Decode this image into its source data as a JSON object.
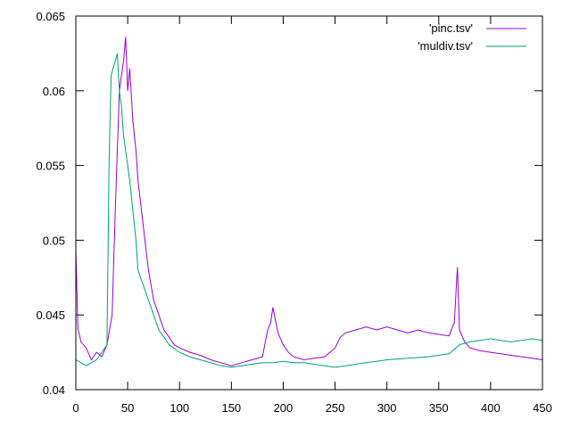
{
  "chart_data": {
    "type": "line",
    "title": "",
    "xlabel": "",
    "ylabel": "",
    "xlim": [
      0,
      450
    ],
    "ylim": [
      0.04,
      0.065
    ],
    "x_ticks": [
      0,
      50,
      100,
      150,
      200,
      250,
      300,
      350,
      400,
      450
    ],
    "y_ticks": [
      0.04,
      0.045,
      0.05,
      0.055,
      0.06,
      0.065
    ],
    "x_tick_labels": [
      "0",
      "50",
      "100",
      "150",
      "200",
      "250",
      "300",
      "350",
      "400",
      "450"
    ],
    "y_tick_labels": [
      "0.04",
      "0.045",
      "0.05",
      "0.055",
      "0.06",
      "0.065"
    ],
    "grid": false,
    "legend_position": "top-right",
    "series": [
      {
        "name": "'pinc.tsv'",
        "color": "#9400d3",
        "x": [
          0,
          2,
          5,
          10,
          15,
          20,
          25,
          30,
          35,
          38,
          40,
          42,
          44,
          46,
          48,
          50,
          52,
          55,
          58,
          60,
          65,
          70,
          75,
          80,
          85,
          90,
          95,
          100,
          110,
          120,
          130,
          140,
          150,
          160,
          170,
          180,
          185,
          188,
          190,
          195,
          200,
          205,
          210,
          220,
          230,
          240,
          250,
          255,
          260,
          270,
          280,
          290,
          300,
          310,
          320,
          330,
          340,
          350,
          360,
          365,
          368,
          370,
          375,
          380,
          390,
          400,
          410,
          420,
          430,
          440,
          450
        ],
        "y": [
          0.0494,
          0.0441,
          0.0432,
          0.0428,
          0.042,
          0.0425,
          0.0422,
          0.043,
          0.045,
          0.052,
          0.056,
          0.06,
          0.061,
          0.062,
          0.0636,
          0.06,
          0.0615,
          0.058,
          0.056,
          0.054,
          0.051,
          0.048,
          0.046,
          0.045,
          0.044,
          0.0435,
          0.043,
          0.0428,
          0.0425,
          0.0423,
          0.042,
          0.0418,
          0.0416,
          0.0418,
          0.042,
          0.0422,
          0.044,
          0.0445,
          0.0455,
          0.0438,
          0.043,
          0.0425,
          0.0422,
          0.042,
          0.0421,
          0.0422,
          0.0428,
          0.0435,
          0.0438,
          0.044,
          0.0442,
          0.044,
          0.0442,
          0.044,
          0.0438,
          0.044,
          0.0438,
          0.0437,
          0.0436,
          0.0445,
          0.0482,
          0.044,
          0.0432,
          0.0428,
          0.0426,
          0.0425,
          0.0424,
          0.0423,
          0.0422,
          0.0421,
          0.042
        ]
      },
      {
        "name": "'muldiv.tsv'",
        "color": "#009e73",
        "x": [
          0,
          5,
          10,
          15,
          20,
          25,
          30,
          32,
          34,
          36,
          38,
          40,
          42,
          44,
          46,
          48,
          50,
          52,
          55,
          58,
          60,
          65,
          70,
          75,
          80,
          85,
          90,
          100,
          110,
          120,
          130,
          140,
          150,
          160,
          170,
          180,
          190,
          200,
          210,
          220,
          230,
          240,
          250,
          260,
          270,
          280,
          290,
          300,
          320,
          340,
          360,
          370,
          380,
          390,
          400,
          410,
          420,
          430,
          440,
          450
        ],
        "y": [
          0.042,
          0.0418,
          0.0416,
          0.0418,
          0.042,
          0.0425,
          0.043,
          0.055,
          0.061,
          0.0615,
          0.062,
          0.0625,
          0.06,
          0.059,
          0.057,
          0.056,
          0.055,
          0.054,
          0.052,
          0.05,
          0.048,
          0.047,
          0.046,
          0.045,
          0.044,
          0.0435,
          0.043,
          0.0425,
          0.0422,
          0.042,
          0.0418,
          0.0416,
          0.0415,
          0.0416,
          0.0417,
          0.0418,
          0.0418,
          0.0419,
          0.0418,
          0.0418,
          0.0417,
          0.0416,
          0.0415,
          0.0416,
          0.0417,
          0.0418,
          0.0419,
          0.042,
          0.0421,
          0.0422,
          0.0424,
          0.043,
          0.0432,
          0.0433,
          0.0434,
          0.0433,
          0.0432,
          0.0433,
          0.0434,
          0.0433
        ]
      }
    ]
  }
}
